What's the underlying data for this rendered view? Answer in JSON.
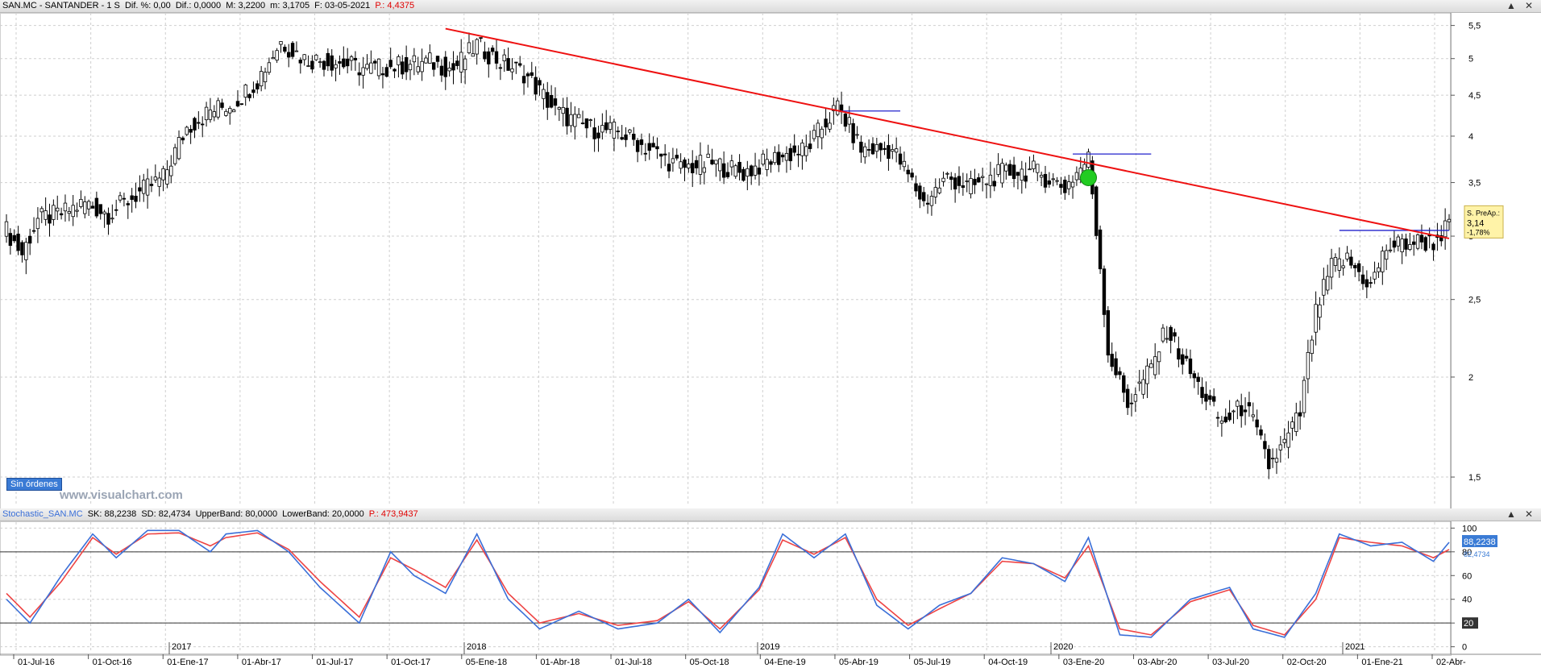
{
  "main_header": {
    "symbol": "SAN.MC - SANTANDER - 1 S",
    "dif_pct": "Dif. %: 0,00",
    "dif": "Dif.: 0,0000",
    "max": "M: 3,2200",
    "min": "m: 3,1705",
    "date": "F: 03-05-2021",
    "price": "P.: 4,4375"
  },
  "stoch_header": {
    "name": "Stochastic_SAN.MC",
    "sk": "SK: 88,2238",
    "sd": "SD: 82,4734",
    "upper": "UpperBand: 80,0000",
    "lower": "LowerBand: 20,0000",
    "p": "P.: 473,9437"
  },
  "orders_button": "Sin órdenes",
  "watermark": "www.visualchart.com",
  "last_price_box": {
    "label": "S. PreAp.:",
    "value": "3,14",
    "change": "-1,78%"
  },
  "colors": {
    "up": "#ffffff",
    "down": "#000000",
    "trendline": "#ee1111",
    "level": "#2222cc",
    "sk": "#3a6fd8",
    "sd": "#ee4444",
    "signal": "#22cc22"
  },
  "chart_data": [
    {
      "type": "candlestick",
      "scale": "log",
      "ylim": [
        1.38,
        5.65
      ],
      "y_ticks": [
        1.5,
        2,
        2.5,
        3,
        3.5,
        4,
        4.5,
        5,
        5.5
      ],
      "y_tick_labels": [
        "1,5",
        "2",
        "2,5",
        "3",
        "3,5",
        "4",
        "4,5",
        "5",
        "5,5"
      ],
      "x_labels": [
        "01-Jul-16",
        "01-Oct-16",
        "01-Ene-17",
        "01-Abr-17",
        "01-Jul-17",
        "01-Oct-17",
        "05-Ene-18",
        "01-Abr-18",
        "01-Jul-18",
        "05-Oct-18",
        "04-Ene-19",
        "05-Abr-19",
        "05-Jul-19",
        "04-Oct-19",
        "03-Ene-20",
        "03-Abr-20",
        "03-Jul-20",
        "02-Oct-20",
        "01-Ene-21",
        "02-Abr-"
      ],
      "year_labels": [
        "2017",
        "2018",
        "2019",
        "2020",
        "2021"
      ],
      "anchors": [
        [
          0,
          3.05
        ],
        [
          4,
          2.85
        ],
        [
          8,
          3.15
        ],
        [
          14,
          3.2
        ],
        [
          20,
          3.3
        ],
        [
          26,
          3.2
        ],
        [
          34,
          3.4
        ],
        [
          40,
          3.55
        ],
        [
          46,
          4.1
        ],
        [
          52,
          4.3
        ],
        [
          58,
          4.4
        ],
        [
          64,
          4.7
        ],
        [
          70,
          5.25
        ],
        [
          76,
          5.0
        ],
        [
          84,
          4.95
        ],
        [
          92,
          4.85
        ],
        [
          100,
          4.9
        ],
        [
          108,
          4.95
        ],
        [
          114,
          4.85
        ],
        [
          120,
          5.2
        ],
        [
          126,
          4.95
        ],
        [
          132,
          4.8
        ],
        [
          140,
          4.3
        ],
        [
          148,
          4.1
        ],
        [
          156,
          4.05
        ],
        [
          164,
          3.85
        ],
        [
          172,
          3.65
        ],
        [
          180,
          3.7
        ],
        [
          188,
          3.6
        ],
        [
          196,
          3.75
        ],
        [
          204,
          3.85
        ],
        [
          212,
          4.35
        ],
        [
          218,
          3.85
        ],
        [
          226,
          3.85
        ],
        [
          234,
          3.3
        ],
        [
          240,
          3.55
        ],
        [
          246,
          3.45
        ],
        [
          254,
          3.6
        ],
        [
          262,
          3.62
        ],
        [
          270,
          3.45
        ],
        [
          276,
          3.75
        ],
        [
          278,
          3.05
        ],
        [
          281,
          2.15
        ],
        [
          286,
          1.85
        ],
        [
          292,
          2.05
        ],
        [
          296,
          2.3
        ],
        [
          300,
          2.1
        ],
        [
          304,
          1.95
        ],
        [
          310,
          1.75
        ],
        [
          316,
          1.85
        ],
        [
          322,
          1.55
        ],
        [
          326,
          1.65
        ],
        [
          330,
          1.8
        ],
        [
          334,
          2.4
        ],
        [
          338,
          2.75
        ],
        [
          342,
          2.8
        ],
        [
          348,
          2.6
        ],
        [
          352,
          2.9
        ],
        [
          358,
          2.95
        ],
        [
          364,
          2.95
        ],
        [
          368,
          3.1
        ]
      ],
      "n_bars": 369,
      "trendline": {
        "start": [
          112,
          5.45
        ],
        "end": [
          368,
          2.98
        ]
      },
      "levels": [
        {
          "from": 212,
          "to": 228,
          "y": 4.3
        },
        {
          "from": 272,
          "to": 292,
          "y": 3.8
        },
        {
          "from": 340,
          "to": 368,
          "y": 3.05
        }
      ],
      "signal": {
        "bar": 276,
        "y": 3.55
      },
      "last_price": 3.14
    },
    {
      "type": "line",
      "name": "Stochastic",
      "ylim": [
        -5,
        105
      ],
      "y_ticks": [
        0,
        20,
        40,
        60,
        80,
        100
      ],
      "y_tick_labels": [
        "0",
        "20",
        "40",
        "60",
        "80",
        "100"
      ],
      "bands": [
        80,
        20
      ],
      "band_labels": [
        "88,2238",
        "82,4734",
        "20"
      ],
      "sk_anchors": [
        [
          0,
          40
        ],
        [
          6,
          20
        ],
        [
          14,
          60
        ],
        [
          22,
          95
        ],
        [
          28,
          75
        ],
        [
          36,
          98
        ],
        [
          44,
          98
        ],
        [
          52,
          80
        ],
        [
          56,
          95
        ],
        [
          64,
          98
        ],
        [
          72,
          80
        ],
        [
          80,
          50
        ],
        [
          90,
          20
        ],
        [
          98,
          80
        ],
        [
          104,
          60
        ],
        [
          112,
          45
        ],
        [
          120,
          95
        ],
        [
          128,
          40
        ],
        [
          136,
          15
        ],
        [
          146,
          30
        ],
        [
          156,
          15
        ],
        [
          166,
          20
        ],
        [
          174,
          40
        ],
        [
          182,
          12
        ],
        [
          192,
          50
        ],
        [
          198,
          95
        ],
        [
          206,
          75
        ],
        [
          214,
          95
        ],
        [
          222,
          35
        ],
        [
          230,
          15
        ],
        [
          238,
          35
        ],
        [
          246,
          45
        ],
        [
          254,
          75
        ],
        [
          262,
          70
        ],
        [
          270,
          55
        ],
        [
          276,
          92
        ],
        [
          284,
          10
        ],
        [
          292,
          8
        ],
        [
          302,
          40
        ],
        [
          312,
          50
        ],
        [
          318,
          15
        ],
        [
          326,
          8
        ],
        [
          334,
          45
        ],
        [
          340,
          95
        ],
        [
          348,
          85
        ],
        [
          356,
          88
        ],
        [
          364,
          72
        ],
        [
          368,
          88
        ]
      ],
      "sd_anchors": [
        [
          0,
          45
        ],
        [
          6,
          25
        ],
        [
          14,
          55
        ],
        [
          22,
          92
        ],
        [
          28,
          78
        ],
        [
          36,
          95
        ],
        [
          44,
          96
        ],
        [
          52,
          85
        ],
        [
          56,
          92
        ],
        [
          64,
          96
        ],
        [
          72,
          82
        ],
        [
          80,
          55
        ],
        [
          90,
          25
        ],
        [
          98,
          75
        ],
        [
          104,
          65
        ],
        [
          112,
          50
        ],
        [
          120,
          90
        ],
        [
          128,
          45
        ],
        [
          136,
          20
        ],
        [
          146,
          28
        ],
        [
          156,
          18
        ],
        [
          166,
          22
        ],
        [
          174,
          38
        ],
        [
          182,
          15
        ],
        [
          192,
          48
        ],
        [
          198,
          90
        ],
        [
          206,
          78
        ],
        [
          214,
          92
        ],
        [
          222,
          40
        ],
        [
          230,
          18
        ],
        [
          238,
          32
        ],
        [
          246,
          45
        ],
        [
          254,
          72
        ],
        [
          262,
          70
        ],
        [
          270,
          58
        ],
        [
          276,
          85
        ],
        [
          284,
          15
        ],
        [
          292,
          10
        ],
        [
          302,
          38
        ],
        [
          312,
          48
        ],
        [
          318,
          18
        ],
        [
          326,
          10
        ],
        [
          334,
          40
        ],
        [
          340,
          92
        ],
        [
          348,
          88
        ],
        [
          356,
          85
        ],
        [
          364,
          75
        ],
        [
          368,
          82
        ]
      ]
    }
  ]
}
